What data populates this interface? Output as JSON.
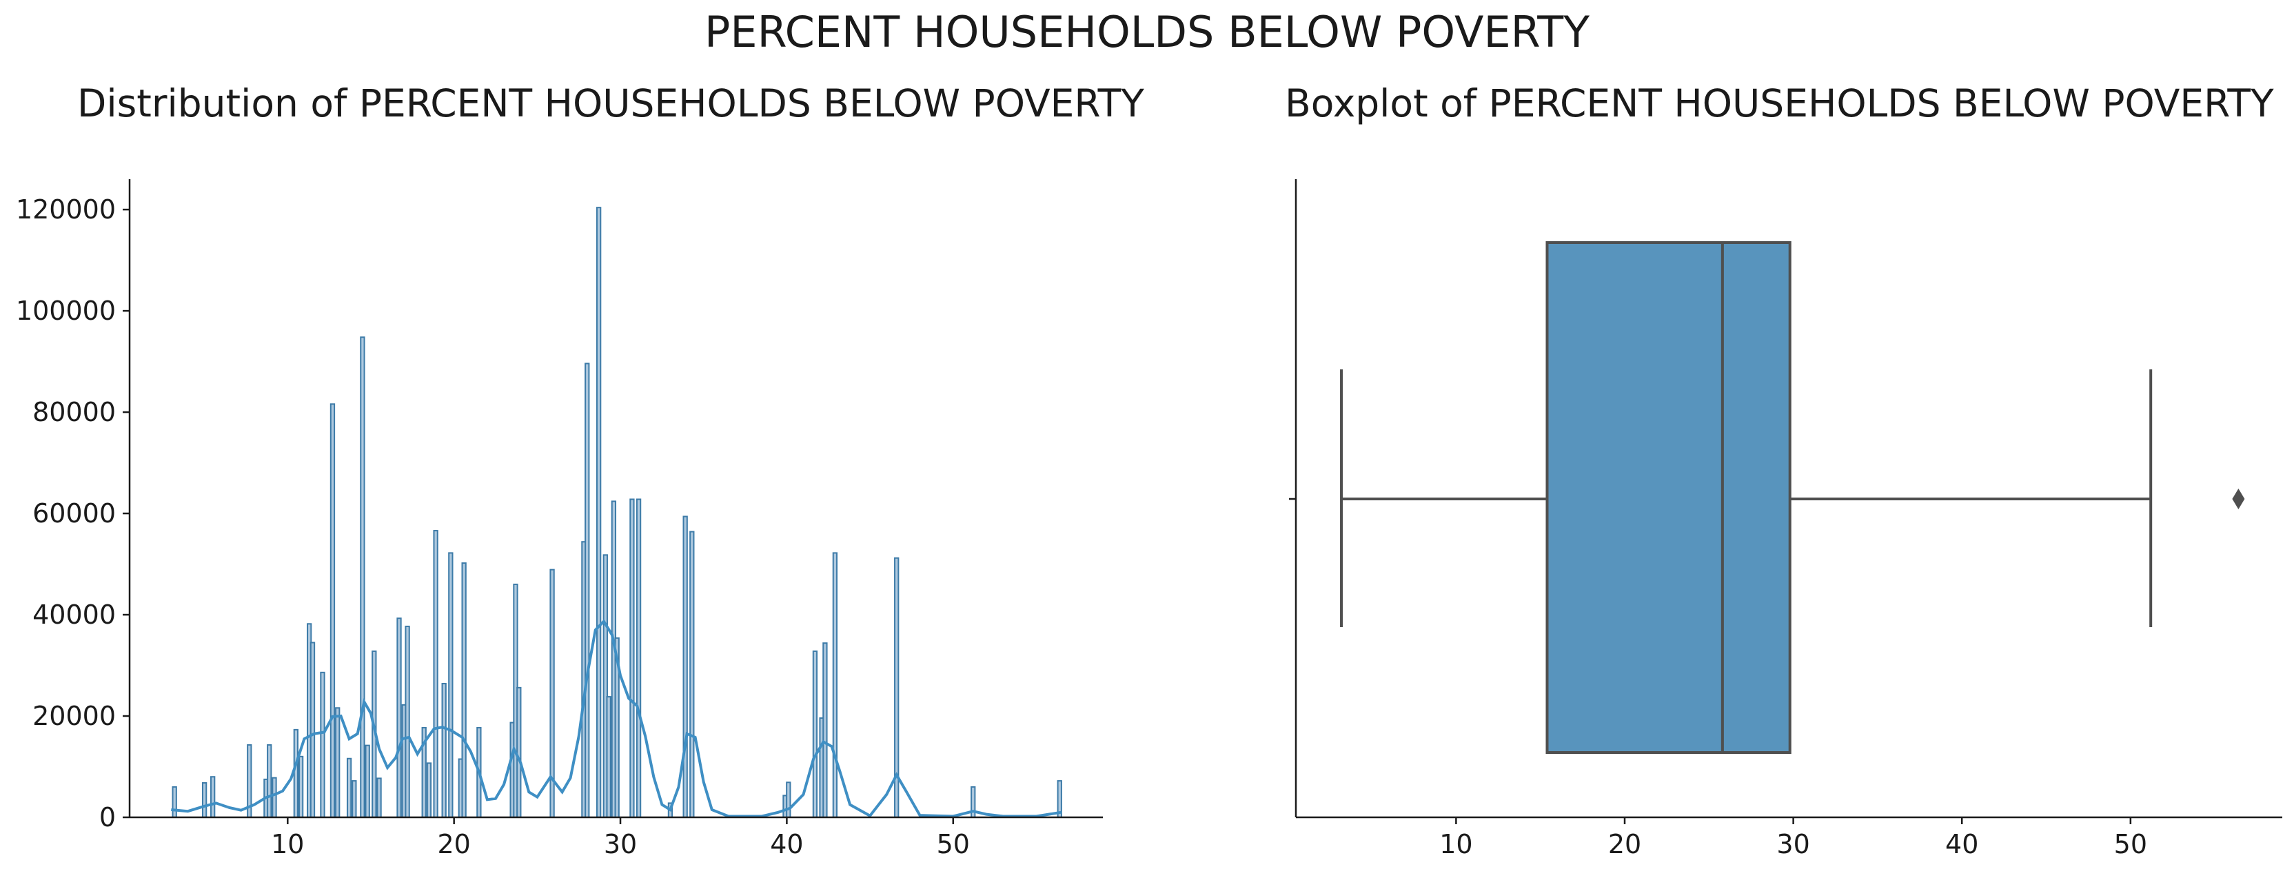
{
  "title": "PERCENT HOUSEHOLDS BELOW POVERTY",
  "chart_data": [
    {
      "type": "histogram",
      "title": "Distribution of PERCENT HOUSEHOLDS BELOW POVERTY",
      "xlabel": "",
      "ylabel": "",
      "xlim": [
        0.5,
        59
      ],
      "ylim": [
        0,
        126000
      ],
      "xticks": [
        10,
        20,
        30,
        40,
        50
      ],
      "yticks": [
        0,
        20000,
        40000,
        60000,
        80000,
        100000,
        120000
      ],
      "bars": [
        [
          3.2,
          6000
        ],
        [
          5.0,
          6800
        ],
        [
          5.5,
          8000
        ],
        [
          7.7,
          14300
        ],
        [
          8.7,
          7500
        ],
        [
          8.9,
          14300
        ],
        [
          9.2,
          7800
        ],
        [
          10.5,
          17300
        ],
        [
          10.8,
          12000
        ],
        [
          11.3,
          38200
        ],
        [
          11.5,
          34500
        ],
        [
          12.1,
          28600
        ],
        [
          12.7,
          81600
        ],
        [
          13.0,
          21600
        ],
        [
          13.7,
          11600
        ],
        [
          14.0,
          7200
        ],
        [
          14.5,
          94800
        ],
        [
          14.8,
          14200
        ],
        [
          15.2,
          32800
        ],
        [
          15.5,
          7700
        ],
        [
          16.7,
          39300
        ],
        [
          17.0,
          22200
        ],
        [
          17.2,
          37700
        ],
        [
          18.2,
          17700
        ],
        [
          18.5,
          10700
        ],
        [
          18.9,
          56600
        ],
        [
          19.4,
          26400
        ],
        [
          19.8,
          52200
        ],
        [
          20.4,
          11500
        ],
        [
          20.6,
          50200
        ],
        [
          21.5,
          17700
        ],
        [
          23.5,
          18700
        ],
        [
          23.7,
          46000
        ],
        [
          23.9,
          25600
        ],
        [
          25.9,
          48900
        ],
        [
          27.8,
          54400
        ],
        [
          28.0,
          89600
        ],
        [
          28.7,
          120400
        ],
        [
          29.1,
          51800
        ],
        [
          29.3,
          23800
        ],
        [
          29.6,
          62400
        ],
        [
          29.8,
          35400
        ],
        [
          30.7,
          62800
        ],
        [
          31.1,
          62800
        ],
        [
          33.0,
          2800
        ],
        [
          33.9,
          59400
        ],
        [
          34.3,
          56400
        ],
        [
          39.9,
          4300
        ],
        [
          40.1,
          6900
        ],
        [
          41.7,
          32800
        ],
        [
          42.1,
          19600
        ],
        [
          42.3,
          34400
        ],
        [
          42.9,
          52200
        ],
        [
          46.6,
          51200
        ],
        [
          51.2,
          6000
        ],
        [
          56.4,
          7200
        ]
      ],
      "kde": [
        [
          3.0,
          1500
        ],
        [
          4.0,
          1200
        ],
        [
          5.0,
          2200
        ],
        [
          5.7,
          2800
        ],
        [
          6.5,
          1900
        ],
        [
          7.2,
          1400
        ],
        [
          8.0,
          2500
        ],
        [
          8.7,
          3900
        ],
        [
          9.3,
          4600
        ],
        [
          9.7,
          5200
        ],
        [
          10.2,
          7600
        ],
        [
          10.6,
          11500
        ],
        [
          11.0,
          15500
        ],
        [
          11.6,
          16500
        ],
        [
          12.2,
          16800
        ],
        [
          12.7,
          19900
        ],
        [
          13.2,
          20000
        ],
        [
          13.7,
          15500
        ],
        [
          14.2,
          16500
        ],
        [
          14.6,
          22800
        ],
        [
          15.0,
          20500
        ],
        [
          15.5,
          13500
        ],
        [
          16.0,
          9800
        ],
        [
          16.5,
          11800
        ],
        [
          16.9,
          15500
        ],
        [
          17.3,
          15800
        ],
        [
          17.8,
          12500
        ],
        [
          18.3,
          15200
        ],
        [
          18.8,
          17500
        ],
        [
          19.3,
          17800
        ],
        [
          19.8,
          17200
        ],
        [
          20.5,
          15800
        ],
        [
          21.0,
          13000
        ],
        [
          21.5,
          9000
        ],
        [
          22.0,
          3500
        ],
        [
          22.5,
          3700
        ],
        [
          23.0,
          6500
        ],
        [
          23.6,
          13500
        ],
        [
          24.0,
          10800
        ],
        [
          24.5,
          5000
        ],
        [
          25.0,
          4000
        ],
        [
          25.8,
          8000
        ],
        [
          26.5,
          5000
        ],
        [
          27.0,
          7800
        ],
        [
          27.5,
          16000
        ],
        [
          28.0,
          28000
        ],
        [
          28.5,
          37000
        ],
        [
          29.0,
          38700
        ],
        [
          29.5,
          36000
        ],
        [
          30.0,
          28000
        ],
        [
          30.5,
          23500
        ],
        [
          31.0,
          22000
        ],
        [
          31.5,
          16000
        ],
        [
          32.0,
          8000
        ],
        [
          32.5,
          2500
        ],
        [
          33.0,
          1500
        ],
        [
          33.5,
          6000
        ],
        [
          34.0,
          16500
        ],
        [
          34.5,
          15800
        ],
        [
          35.0,
          7000
        ],
        [
          35.5,
          1500
        ],
        [
          36.5,
          200
        ],
        [
          38.5,
          200
        ],
        [
          39.5,
          1000
        ],
        [
          40.2,
          1800
        ],
        [
          41.0,
          4500
        ],
        [
          41.6,
          11500
        ],
        [
          42.2,
          14900
        ],
        [
          42.7,
          14000
        ],
        [
          43.2,
          9000
        ],
        [
          43.8,
          2500
        ],
        [
          45.0,
          300
        ],
        [
          46.0,
          4500
        ],
        [
          46.6,
          8400
        ],
        [
          47.2,
          5000
        ],
        [
          48.0,
          400
        ],
        [
          50.0,
          200
        ],
        [
          51.2,
          1200
        ],
        [
          52.0,
          600
        ],
        [
          53.0,
          200
        ],
        [
          55.0,
          200
        ],
        [
          56.5,
          1000
        ]
      ]
    },
    {
      "type": "boxplot",
      "title": "Boxplot of PERCENT HOUSEHOLDS BELOW POVERTY",
      "xlim": [
        0.5,
        59
      ],
      "xticks": [
        10,
        20,
        30,
        40,
        50
      ],
      "whisker_low": 3.2,
      "q1": 15.4,
      "median": 25.8,
      "q3": 29.8,
      "whisker_high": 51.2,
      "outliers": [
        56.4
      ]
    }
  ],
  "colors": {
    "bar_fill": "#aec9df",
    "bar_edge": "#3d7ba8",
    "kde": "#3f8fc4",
    "box_fill": "#5894bd",
    "box_edge": "#4f4f4f",
    "axis": "#1a1a1a"
  }
}
